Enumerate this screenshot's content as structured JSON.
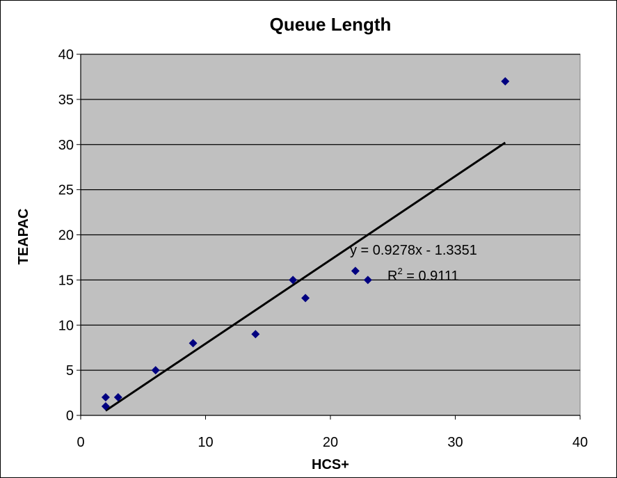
{
  "chart_data": {
    "type": "scatter",
    "title": "Queue Length",
    "xlabel": "HCS+",
    "ylabel": "TEAPAC",
    "xlim": [
      0,
      40
    ],
    "ylim": [
      0,
      40
    ],
    "x_ticks": [
      "0",
      "10",
      "20",
      "30",
      "40"
    ],
    "y_ticks": [
      "0",
      "5",
      "10",
      "15",
      "20",
      "25",
      "30",
      "35",
      "40"
    ],
    "grid": "horizontal",
    "plot_background": "#C0C0C0",
    "marker_color": "#000080",
    "series": [
      {
        "marker": "diamond",
        "points": [
          {
            "x": 2,
            "y": 1
          },
          {
            "x": 2,
            "y": 2
          },
          {
            "x": 3,
            "y": 2
          },
          {
            "x": 6,
            "y": 5
          },
          {
            "x": 9,
            "y": 8
          },
          {
            "x": 14,
            "y": 9
          },
          {
            "x": 17,
            "y": 15
          },
          {
            "x": 18,
            "y": 13
          },
          {
            "x": 22,
            "y": 16
          },
          {
            "x": 23,
            "y": 15
          },
          {
            "x": 34,
            "y": 37
          }
        ]
      }
    ],
    "trendline": {
      "type": "linear",
      "slope": 0.9278,
      "intercept": -1.3351,
      "x_range": [
        2,
        34
      ],
      "color": "#000000"
    },
    "annotations": {
      "equation": "y = 0.9278x - 1.3351",
      "r2_prefix": "R",
      "r2_sup": "2",
      "r2_suffix": " = 0.9111"
    }
  }
}
